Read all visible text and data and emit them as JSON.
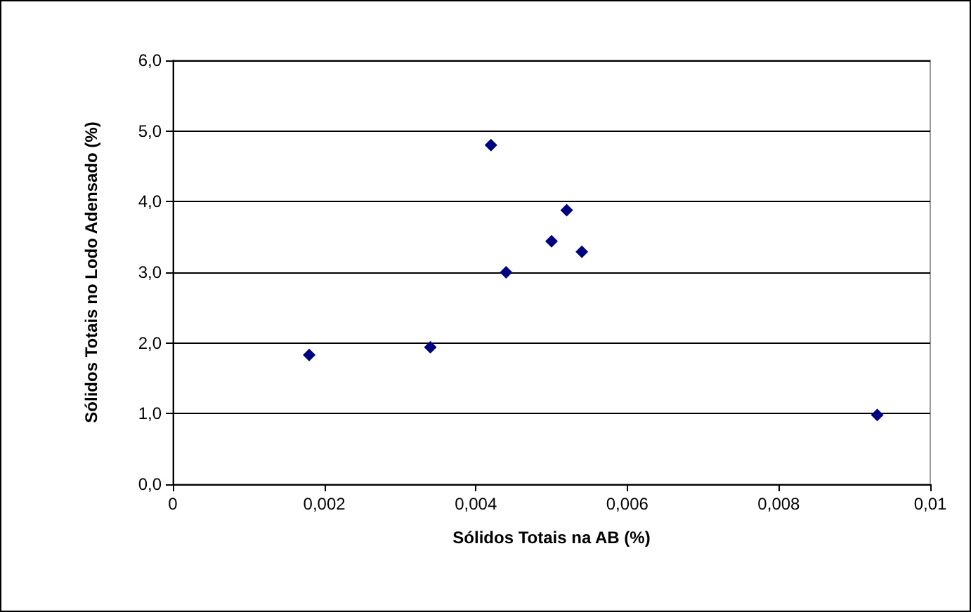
{
  "chart_data": {
    "type": "scatter",
    "xlabel": "Sólidos Totais na AB (%)",
    "ylabel": "Sólidos Totais no Lodo Adensado (%)",
    "x": [
      0.0018,
      0.0034,
      0.0042,
      0.0044,
      0.005,
      0.0052,
      0.0054,
      0.0093
    ],
    "series": [
      {
        "color": "#000080",
        "values": [
          1.83,
          1.94,
          4.8,
          3.0,
          3.44,
          3.88,
          3.29,
          0.98
        ]
      }
    ],
    "xlim": [
      0,
      0.01
    ],
    "xticks": [
      {
        "value": 0,
        "label": "0"
      },
      {
        "value": 0.002,
        "label": "0,002"
      },
      {
        "value": 0.004,
        "label": "0,004"
      },
      {
        "value": 0.006,
        "label": "0,006"
      },
      {
        "value": 0.008,
        "label": "0,008"
      },
      {
        "value": 0.01,
        "label": "0,01"
      }
    ],
    "ylim": [
      0,
      6
    ],
    "yticks": [
      {
        "value": 0,
        "label": "0,0"
      },
      {
        "value": 1,
        "label": "1,0"
      },
      {
        "value": 2,
        "label": "2,0"
      },
      {
        "value": 3,
        "label": "3,0"
      },
      {
        "value": 4,
        "label": "4,0"
      },
      {
        "value": 5,
        "label": "5,0"
      },
      {
        "value": 6,
        "label": "6,0"
      }
    ],
    "grid": "y",
    "marker": "diamond"
  }
}
